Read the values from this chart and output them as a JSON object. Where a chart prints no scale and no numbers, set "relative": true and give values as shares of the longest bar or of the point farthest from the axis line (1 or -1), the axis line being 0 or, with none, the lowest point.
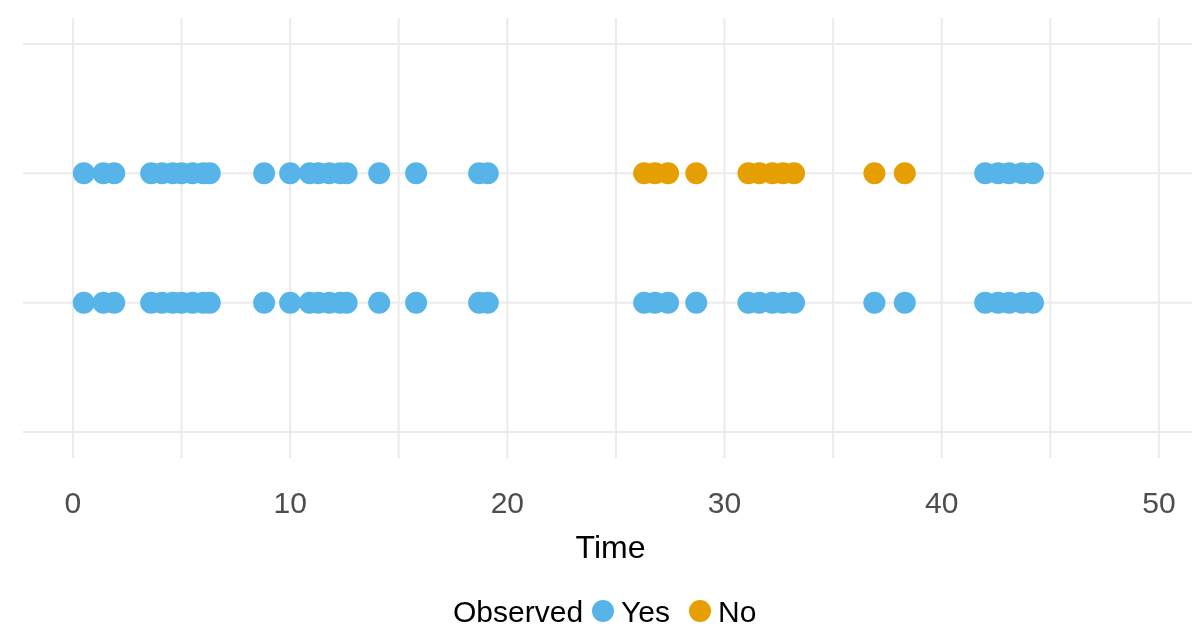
{
  "chart_data": {
    "type": "scatter",
    "xlabel": "Time",
    "legend_title": "Observed",
    "legend": "bottom",
    "grid": true,
    "marker": "circle",
    "tick_labels": "x",
    "xlim": [
      -2.3,
      51.8
    ],
    "xticks": [
      0,
      {
        "value": 5,
        "label": null
      },
      10,
      {
        "value": 15,
        "label": null
      },
      20,
      {
        "value": 25,
        "label": null
      },
      30,
      {
        "value": 35,
        "label": null
      },
      40,
      {
        "value": 45,
        "label": null
      },
      50
    ],
    "relative": true,
    "series": [
      {
        "name": "Yes",
        "color": "#56b4e9",
        "x": [
          0.5,
          1.4,
          1.9,
          3.6,
          4.1,
          4.6,
          5.0,
          5.5,
          6.0,
          6.3,
          8.8,
          10.0,
          10.9,
          11.3,
          11.8,
          12.3,
          12.6,
          14.1,
          15.8,
          18.7,
          19.1,
          42.0,
          42.6,
          43.1,
          43.7,
          44.2,
          0.5,
          1.4,
          1.9,
          3.6,
          4.1,
          4.6,
          5.0,
          5.5,
          6.0,
          6.3,
          8.8,
          10.0,
          10.9,
          11.3,
          11.8,
          12.3,
          12.6,
          14.1,
          15.8,
          18.7,
          19.1,
          26.3,
          26.8,
          27.4,
          28.7,
          31.1,
          31.6,
          32.2,
          32.7,
          33.2,
          36.9,
          38.3,
          42.0,
          42.6,
          43.1,
          43.7,
          44.2
        ],
        "values": [
          1,
          1,
          1,
          1,
          1,
          1,
          1,
          1,
          1,
          1,
          1,
          1,
          1,
          1,
          1,
          1,
          1,
          1,
          1,
          1,
          1,
          1,
          1,
          1,
          1,
          1,
          0,
          0,
          0,
          0,
          0,
          0,
          0,
          0,
          0,
          0,
          0,
          0,
          0,
          0,
          0,
          0,
          0,
          0,
          0,
          0,
          0,
          0,
          0,
          0,
          0,
          0,
          0,
          0,
          0,
          0,
          0,
          0,
          0,
          0,
          0,
          0,
          0
        ]
      },
      {
        "name": "No",
        "color": "#e69f00",
        "x": [
          26.3,
          26.8,
          27.4,
          28.7,
          31.1,
          31.6,
          32.2,
          32.7,
          33.2,
          36.9,
          38.3
        ],
        "values": [
          1,
          1,
          1,
          1,
          1,
          1,
          1,
          1,
          1,
          1,
          1
        ]
      }
    ]
  }
}
